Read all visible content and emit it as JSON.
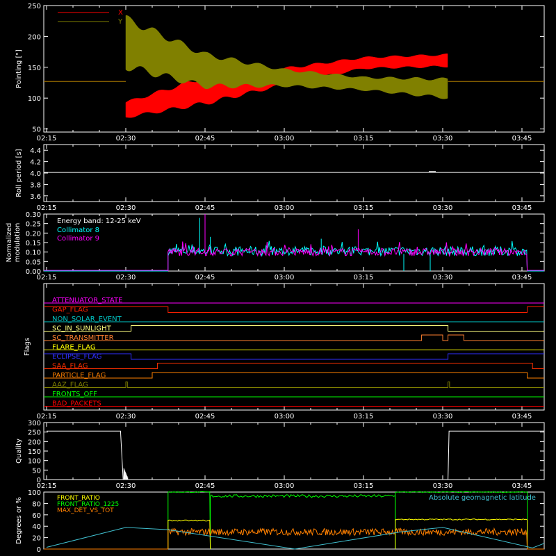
{
  "chart_data": [
    {
      "id": "pointing",
      "type": "line",
      "ylabel": "Pointing [\"]",
      "ylim": [
        45,
        250
      ],
      "yticks": [
        50,
        100,
        150,
        200,
        250
      ],
      "xticks": [
        "02:15",
        "02:30",
        "02:45",
        "03:00",
        "03:15",
        "03:30",
        "03:45"
      ],
      "x_range_minutes": [
        -18,
        77
      ],
      "legend_placement": "top-left",
      "series": [
        {
          "name": "X",
          "color": "#ff0000",
          "baseline": 127,
          "active_window": [
            "02:30",
            "03:31"
          ],
          "envelope_x": [
            "02:30",
            "02:45",
            "03:00",
            "03:15",
            "03:31"
          ],
          "upper": [
            95,
            137,
            150,
            167,
            172
          ],
          "lower": [
            67,
            88,
            120,
            147,
            150
          ]
        },
        {
          "name": "Y",
          "color": "#808000",
          "baseline": 127,
          "active_window": [
            "02:30",
            "03:31"
          ],
          "envelope_x": [
            "02:30",
            "02:45",
            "03:00",
            "03:15",
            "03:31"
          ],
          "upper": [
            235,
            175,
            148,
            135,
            133
          ],
          "lower": [
            145,
            115,
            118,
            112,
            98
          ]
        }
      ]
    },
    {
      "id": "roll",
      "type": "line",
      "ylabel": "Roll period [s]",
      "ylim": [
        3.5,
        4.5
      ],
      "yticks": [
        "3.6",
        "3.8",
        "4.0",
        "4.2",
        "4.4"
      ],
      "xticks": [
        "02:15",
        "02:30",
        "02:45",
        "03:00",
        "03:15",
        "03:30",
        "03:45"
      ],
      "series": [
        {
          "color": "#ffffff",
          "value": 4.01
        }
      ]
    },
    {
      "id": "modulation",
      "type": "line",
      "ylabel": "Normalized modulation",
      "ylim": [
        0,
        0.3
      ],
      "yticks": [
        "0.00",
        "0.05",
        "0.10",
        "0.15",
        "0.20",
        "0.25",
        "0.30"
      ],
      "xticks": [
        "02:15",
        "02:30",
        "02:45",
        "03:00",
        "03:15",
        "03:30",
        "03:45"
      ],
      "annotation": "Energy band: 12-25 keV",
      "legend_placement": "top-left",
      "active_window": [
        "02:38",
        "03:46"
      ],
      "series": [
        {
          "name": "Collimator 8",
          "color": "#00ffff",
          "typical": [
            0.08,
            0.13
          ],
          "spikes": [
            [
              "02:44",
              0.28
            ],
            [
              "02:46",
              0.18
            ],
            [
              "03:07",
              0.17
            ]
          ]
        },
        {
          "name": "Collimator 9",
          "color": "#ff00ff",
          "typical": [
            0.08,
            0.12
          ],
          "spikes": [
            [
              "02:45",
              0.3
            ],
            [
              "03:14",
              0.22
            ]
          ]
        }
      ]
    },
    {
      "id": "flags",
      "type": "line",
      "ylabel": "Flags",
      "xticks": [
        "02:15",
        "02:30",
        "02:45",
        "03:00",
        "03:15",
        "03:30",
        "03:45"
      ],
      "series": [
        {
          "name": "ATTENUATOR_STATE",
          "color": "#ff00ff",
          "steps": [
            [
              "02:15",
              0
            ]
          ]
        },
        {
          "name": "GAP_FLAG",
          "color": "#ff2000",
          "steps": [
            [
              "02:15",
              1
            ],
            [
              "02:38",
              0
            ],
            [
              "03:46",
              1
            ]
          ]
        },
        {
          "name": "NON_SOLAR_EVENT",
          "color": "#00c8c8",
          "steps": [
            [
              "02:15",
              0
            ]
          ]
        },
        {
          "name": "SC_IN_SUNLIGHT",
          "color": "#ffff80",
          "steps": [
            [
              "02:15",
              0
            ],
            [
              "02:31",
              1
            ],
            [
              "03:31",
              0
            ]
          ]
        },
        {
          "name": "SC_TRANSMITTER",
          "color": "#ff8030",
          "steps": [
            [
              "02:15",
              0
            ],
            [
              "03:26",
              1
            ],
            [
              "03:30",
              0
            ],
            [
              "03:31",
              1
            ],
            [
              "03:34",
              0
            ]
          ]
        },
        {
          "name": "FLARE_FLAG",
          "color": "#ffff00",
          "steps": [
            [
              "02:15",
              0
            ]
          ]
        },
        {
          "name": "ECLIPSE_FLAG",
          "color": "#3030ff",
          "steps": [
            [
              "02:15",
              1
            ],
            [
              "02:31",
              0
            ],
            [
              "03:31",
              1
            ]
          ]
        },
        {
          "name": "SAA_FLAG",
          "color": "#ff3000",
          "steps": [
            [
              "02:15",
              0
            ],
            [
              "02:36",
              1
            ],
            [
              "03:47",
              0
            ]
          ]
        },
        {
          "name": "PARTICLE_FLAG",
          "color": "#ff8000",
          "steps": [
            [
              "02:15",
              0
            ],
            [
              "02:35",
              1
            ],
            [
              "03:46",
              0
            ]
          ]
        },
        {
          "name": "AAZ_FLAG",
          "color": "#808000",
          "steps": [
            [
              "02:15",
              0
            ],
            [
              "02:30",
              1
            ],
            [
              "02:30.3",
              0
            ],
            [
              "03:31",
              1
            ],
            [
              "03:31.3",
              0
            ]
          ]
        },
        {
          "name": "FRONTS_OFF",
          "color": "#00ff00",
          "steps": [
            [
              "02:15",
              0
            ]
          ]
        },
        {
          "name": "BAD_PACKETS",
          "color": "#ff0000",
          "steps": [
            [
              "02:15",
              0
            ]
          ]
        }
      ]
    },
    {
      "id": "quality",
      "type": "line",
      "ylabel": "Quality",
      "ylim": [
        0,
        300
      ],
      "yticks": [
        0,
        50,
        100,
        150,
        200,
        250,
        300
      ],
      "xticks": [
        "02:15",
        "02:30",
        "02:45",
        "03:00",
        "03:15",
        "03:30",
        "03:45"
      ],
      "series": [
        {
          "color": "#ffffff",
          "points": [
            [
              "02:15",
              255
            ],
            [
              "02:29",
              255
            ],
            [
              "02:29.5",
              0
            ],
            [
              "03:31",
              0
            ],
            [
              "03:31.2",
              255
            ],
            [
              "03:53",
              255
            ]
          ]
        }
      ]
    },
    {
      "id": "ratios",
      "type": "line",
      "ylabel": "Degrees or %",
      "ylim": [
        0,
        100
      ],
      "yticks": [
        0,
        20,
        40,
        60,
        80,
        100
      ],
      "annotation": "Absolute geomagnetic latitude",
      "legend_placement": "top-left",
      "series": [
        {
          "name": "FRONT_RATIO",
          "color": "#ffff00",
          "segments": [
            [
              "02:38",
              "02:46",
              50
            ],
            [
              "03:21",
              "03:46",
              52
            ]
          ]
        },
        {
          "name": "FRONT_RATIO_1225",
          "color": "#00ff00",
          "segments": [
            [
              "02:38",
              "02:46",
              100
            ],
            [
              "02:46",
              "03:21",
              93
            ],
            [
              "03:21",
              "03:46",
              100
            ]
          ]
        },
        {
          "name": "MAX_DET_VS_TOT",
          "color": "#ff8000",
          "segments": [
            [
              "02:38",
              "03:46",
              30
            ]
          ]
        },
        {
          "name": "Absolute geomagnetic latitude",
          "color": "#40c0d0",
          "points": [
            [
              "02:15",
              3
            ],
            [
              "02:30",
              38
            ],
            [
              "02:38",
              34
            ],
            [
              "03:02",
              0
            ],
            [
              "03:22",
              30
            ],
            [
              "03:30",
              38
            ],
            [
              "03:47",
              2
            ],
            [
              "03:53",
              10
            ]
          ]
        }
      ]
    }
  ]
}
